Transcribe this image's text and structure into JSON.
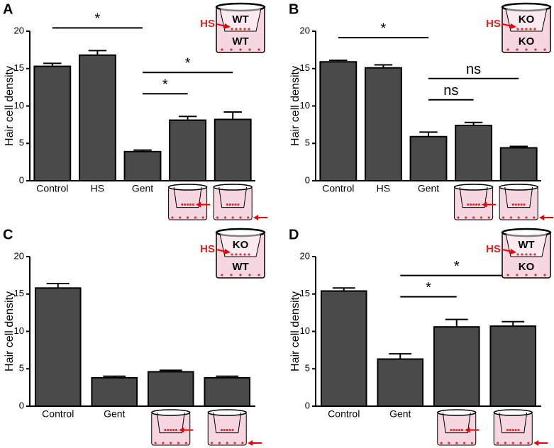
{
  "chart_data": [
    {
      "type": "bar",
      "panel": "A",
      "ylabel": "Hair cell density",
      "color": "#4a4a4a",
      "categories": [
        "Control",
        "HS",
        "Gent",
        null,
        null
      ],
      "values": [
        15.3,
        16.8,
        3.9,
        8.1,
        8.2
      ],
      "errors": [
        0.4,
        0.6,
        0.2,
        0.5,
        1.0
      ],
      "ylim": [
        0,
        20
      ],
      "yticks": [
        0,
        5,
        10,
        15,
        20
      ],
      "significance": [
        {
          "bars": [
            0,
            2
          ],
          "label": "*"
        },
        {
          "bars": [
            2,
            3
          ],
          "label": "*"
        },
        {
          "bars": [
            2,
            4
          ],
          "label": "*"
        }
      ],
      "inset": {
        "treated": "HS",
        "inner": "WT",
        "outer": "WT"
      }
    },
    {
      "type": "bar",
      "panel": "B",
      "ylabel": "Hair cell density",
      "color": "#4a4a4a",
      "categories": [
        "Control",
        "HS",
        "Gent",
        null,
        null
      ],
      "values": [
        15.9,
        15.1,
        5.9,
        7.4,
        4.4
      ],
      "errors": [
        0.2,
        0.4,
        0.6,
        0.4,
        0.2
      ],
      "ylim": [
        0,
        20
      ],
      "yticks": [
        0,
        5,
        10,
        15,
        20
      ],
      "significance": [
        {
          "bars": [
            0,
            2
          ],
          "label": "*"
        },
        {
          "bars": [
            2,
            3
          ],
          "label": "ns"
        },
        {
          "bars": [
            2,
            4
          ],
          "label": "ns"
        }
      ],
      "inset": {
        "treated": "HS",
        "inner": "KO",
        "outer": "KO"
      }
    },
    {
      "type": "bar",
      "panel": "C",
      "ylabel": "Hair cell density",
      "color": "#4a4a4a",
      "categories": [
        "Control",
        "Gent",
        null,
        null
      ],
      "values": [
        15.8,
        3.8,
        4.6,
        3.8
      ],
      "errors": [
        0.6,
        0.2,
        0.2,
        0.2
      ],
      "ylim": [
        0,
        20
      ],
      "yticks": [
        0,
        5,
        10,
        15,
        20
      ],
      "significance": [],
      "inset": {
        "treated": "HS",
        "inner": "KO",
        "outer": "WT"
      }
    },
    {
      "type": "bar",
      "panel": "D",
      "ylabel": "Hair cell density",
      "color": "#4a4a4a",
      "categories": [
        "Control",
        "Gent",
        null,
        null
      ],
      "values": [
        15.4,
        6.3,
        10.6,
        10.7
      ],
      "errors": [
        0.4,
        0.7,
        1.0,
        0.6
      ],
      "ylim": [
        0,
        20
      ],
      "yticks": [
        0,
        5,
        10,
        15,
        20
      ],
      "significance": [
        {
          "bars": [
            1,
            2
          ],
          "label": "*"
        },
        {
          "bars": [
            1,
            3
          ],
          "label": "*"
        }
      ],
      "inset": {
        "treated": "HS",
        "inner": "WT",
        "outer": "KO"
      }
    }
  ]
}
